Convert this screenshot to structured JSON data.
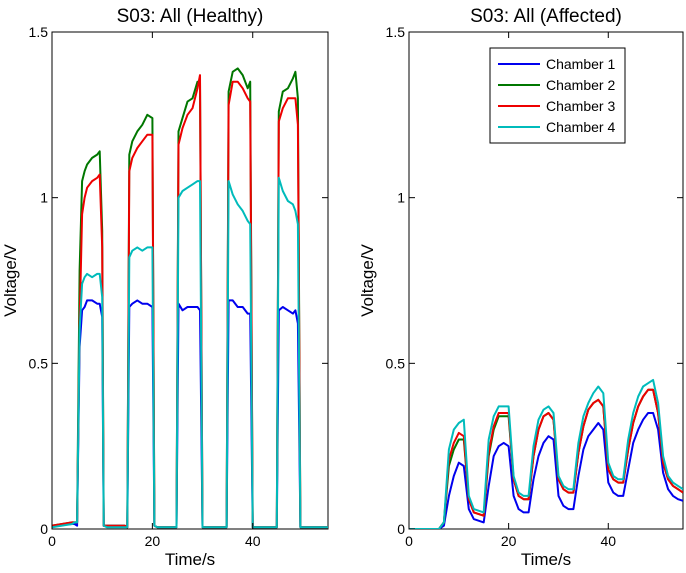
{
  "chart_data": [
    {
      "type": "line",
      "title": "S03: All (Healthy)",
      "xlabel": "Time/s",
      "ylabel": "Voltage/V",
      "xlim": [
        0,
        55
      ],
      "ylim": [
        0,
        1.5
      ],
      "xticks": [
        0,
        20,
        40
      ],
      "yticks": [
        0,
        0.5,
        1,
        1.5
      ],
      "ytick_labels": [
        "0",
        "0.5",
        "1",
        "1.5"
      ],
      "grid": false,
      "series": [
        {
          "name": "Chamber 1",
          "color": "#0000ee",
          "x": [
            0,
            4,
            4.5,
            5,
            5.5,
            6,
            6.5,
            7,
            8,
            9,
            9.5,
            10,
            10.3,
            11,
            14.5,
            15,
            15.4,
            16,
            17,
            18,
            19,
            20,
            20.4,
            21,
            24.5,
            24.8,
            25.2,
            26,
            27,
            28,
            29,
            29.5,
            30,
            34.5,
            34.8,
            35.2,
            36,
            37,
            38,
            39,
            39.5,
            40,
            44.5,
            44.8,
            45.2,
            46,
            47,
            48,
            48.5,
            49,
            49.5,
            55
          ],
          "y": [
            0.01,
            0.015,
            0.015,
            0.01,
            0.55,
            0.66,
            0.67,
            0.69,
            0.69,
            0.68,
            0.68,
            0.64,
            0.01,
            0.01,
            0.01,
            0.005,
            0.67,
            0.68,
            0.69,
            0.68,
            0.68,
            0.67,
            0.01,
            0.005,
            0.005,
            0.005,
            0.68,
            0.66,
            0.67,
            0.67,
            0.67,
            0.66,
            0.005,
            0.005,
            0.005,
            0.69,
            0.69,
            0.67,
            0.67,
            0.65,
            0.65,
            0.005,
            0.005,
            0.005,
            0.66,
            0.67,
            0.66,
            0.65,
            0.66,
            0.62,
            0.005,
            0.005
          ]
        },
        {
          "name": "Chamber 2",
          "color": "#007700",
          "x": [
            0,
            4,
            4.5,
            5,
            5.5,
            6,
            6.5,
            7,
            8,
            9,
            9.5,
            10,
            10.3,
            11,
            14.5,
            15,
            15.4,
            16,
            17,
            18,
            19,
            20,
            20.4,
            21,
            24.5,
            24.8,
            25.2,
            26,
            27,
            28,
            29,
            29.5,
            30,
            34.5,
            34.8,
            35.2,
            36,
            37,
            38,
            39,
            39.5,
            40,
            44.5,
            44.8,
            45.2,
            46,
            47,
            48,
            48.5,
            49,
            49.5,
            55
          ],
          "y": [
            0.01,
            0.02,
            0.02,
            0.02,
            0.78,
            1.05,
            1.08,
            1.1,
            1.12,
            1.13,
            1.14,
            0.9,
            0.01,
            0.01,
            0.01,
            0.005,
            1.13,
            1.17,
            1.2,
            1.22,
            1.25,
            1.24,
            0.01,
            0.005,
            0.005,
            0.005,
            1.2,
            1.24,
            1.29,
            1.3,
            1.35,
            1.35,
            0.005,
            0.005,
            0.005,
            1.32,
            1.38,
            1.39,
            1.37,
            1.33,
            1.35,
            0.005,
            0.005,
            0.005,
            1.26,
            1.32,
            1.33,
            1.36,
            1.38,
            1.3,
            0.005,
            0.005
          ]
        },
        {
          "name": "Chamber 3",
          "color": "#ee0000",
          "x": [
            0,
            4,
            4.5,
            5,
            5.5,
            6,
            6.5,
            7,
            8,
            9,
            9.5,
            10,
            10.3,
            11,
            14.5,
            15,
            15.4,
            16,
            17,
            18,
            19,
            20,
            20.4,
            21,
            24.5,
            24.8,
            25.2,
            26,
            27,
            28,
            29,
            29.5,
            30,
            34.5,
            34.8,
            35.2,
            36,
            37,
            38,
            39,
            39.5,
            40,
            44.5,
            44.8,
            45.2,
            46,
            47,
            48,
            48.5,
            49,
            49.5,
            55
          ],
          "y": [
            0.01,
            0.02,
            0.02,
            0.02,
            0.62,
            0.95,
            1.0,
            1.03,
            1.05,
            1.06,
            1.07,
            0.85,
            0.01,
            0.01,
            0.01,
            0.005,
            1.08,
            1.12,
            1.15,
            1.17,
            1.19,
            1.19,
            0.01,
            0.005,
            0.005,
            0.005,
            1.16,
            1.21,
            1.25,
            1.27,
            1.33,
            1.37,
            0.005,
            0.005,
            0.005,
            1.28,
            1.35,
            1.35,
            1.33,
            1.3,
            1.29,
            0.005,
            0.005,
            0.005,
            1.23,
            1.27,
            1.3,
            1.3,
            1.3,
            1.22,
            0.005,
            0.005
          ]
        },
        {
          "name": "Chamber 4",
          "color": "#00bbbb",
          "x": [
            0,
            4,
            4.5,
            5,
            5.5,
            6,
            6.5,
            7,
            8,
            9,
            9.5,
            10,
            10.3,
            11,
            14.5,
            15,
            15.4,
            16,
            17,
            18,
            19,
            20,
            20.4,
            21,
            24.5,
            24.8,
            25.2,
            26,
            27,
            28,
            29,
            29.5,
            30,
            34.5,
            34.8,
            35.2,
            36,
            37,
            38,
            39,
            39.5,
            40,
            44.5,
            44.8,
            45.2,
            46,
            47,
            48,
            48.5,
            49,
            49.5,
            55
          ],
          "y": [
            0.005,
            0.015,
            0.02,
            0.02,
            0.6,
            0.74,
            0.76,
            0.77,
            0.76,
            0.77,
            0.77,
            0.7,
            0.01,
            0.005,
            0.005,
            0.005,
            0.82,
            0.84,
            0.85,
            0.84,
            0.85,
            0.85,
            0.01,
            0.005,
            0.005,
            0.005,
            1.0,
            1.02,
            1.03,
            1.04,
            1.05,
            1.05,
            0.005,
            0.005,
            0.005,
            1.05,
            1.01,
            0.98,
            0.96,
            0.93,
            0.92,
            0.005,
            0.005,
            0.005,
            1.06,
            1.02,
            0.99,
            0.98,
            0.96,
            0.92,
            0.005,
            0.005
          ]
        }
      ]
    },
    {
      "type": "line",
      "title": "S03: All (Affected)",
      "xlabel": "Time/s",
      "ylabel": "Voltage/V",
      "xlim": [
        0,
        55
      ],
      "ylim": [
        0,
        1.5
      ],
      "xticks": [
        0,
        20,
        40
      ],
      "yticks": [
        0,
        0.5,
        1,
        1.5
      ],
      "ytick_labels": [
        "0",
        "0.5",
        "1",
        "1.5"
      ],
      "grid": false,
      "legend": "top-right",
      "series": [
        {
          "name": "Chamber 1",
          "color": "#0000ee",
          "x": [
            0,
            6,
            7,
            8,
            9,
            10,
            11,
            12,
            13,
            15,
            16,
            17,
            18,
            19,
            20,
            21,
            22,
            23,
            24,
            25,
            26,
            27,
            28,
            29,
            30,
            31,
            32,
            33,
            34,
            35,
            36,
            37,
            38,
            39,
            40,
            41,
            42,
            43,
            44,
            45,
            46,
            47,
            48,
            49,
            50,
            51,
            52,
            53,
            54,
            55
          ],
          "y": [
            0,
            0,
            0.01,
            0.1,
            0.16,
            0.2,
            0.19,
            0.06,
            0.03,
            0.02,
            0.13,
            0.22,
            0.25,
            0.26,
            0.25,
            0.1,
            0.06,
            0.05,
            0.05,
            0.15,
            0.22,
            0.26,
            0.28,
            0.27,
            0.1,
            0.07,
            0.06,
            0.06,
            0.16,
            0.24,
            0.28,
            0.3,
            0.32,
            0.3,
            0.14,
            0.11,
            0.1,
            0.1,
            0.18,
            0.26,
            0.3,
            0.33,
            0.35,
            0.35,
            0.3,
            0.17,
            0.12,
            0.1,
            0.09,
            0.085
          ]
        },
        {
          "name": "Chamber 2",
          "color": "#007700",
          "x": [
            0,
            6,
            7,
            8,
            9,
            10,
            11,
            12,
            13,
            15,
            16,
            17,
            18,
            19,
            20,
            21,
            22,
            23,
            24,
            25,
            26,
            27,
            28,
            29,
            30,
            31,
            32,
            33,
            34,
            35,
            36,
            37,
            38,
            39,
            40,
            41,
            42,
            43,
            44,
            45,
            46,
            47,
            48,
            49,
            50,
            51,
            52,
            53,
            54,
            55
          ],
          "y": [
            0,
            0,
            0.02,
            0.19,
            0.24,
            0.27,
            0.27,
            0.09,
            0.05,
            0.04,
            0.22,
            0.3,
            0.34,
            0.34,
            0.34,
            0.15,
            0.1,
            0.09,
            0.09,
            0.22,
            0.3,
            0.34,
            0.35,
            0.33,
            0.15,
            0.12,
            0.11,
            0.11,
            0.23,
            0.31,
            0.36,
            0.38,
            0.39,
            0.37,
            0.18,
            0.15,
            0.14,
            0.14,
            0.24,
            0.32,
            0.37,
            0.4,
            0.42,
            0.42,
            0.35,
            0.2,
            0.15,
            0.13,
            0.12,
            0.11
          ]
        },
        {
          "name": "Chamber 3",
          "color": "#ee0000",
          "x": [
            0,
            6,
            7,
            8,
            9,
            10,
            11,
            12,
            13,
            15,
            16,
            17,
            18,
            19,
            20,
            21,
            22,
            23,
            24,
            25,
            26,
            27,
            28,
            29,
            30,
            31,
            32,
            33,
            34,
            35,
            36,
            37,
            38,
            39,
            40,
            41,
            42,
            43,
            44,
            45,
            46,
            47,
            48,
            49,
            50,
            51,
            52,
            53,
            54,
            55
          ],
          "y": [
            0,
            0,
            0.02,
            0.21,
            0.26,
            0.29,
            0.28,
            0.09,
            0.05,
            0.04,
            0.23,
            0.31,
            0.35,
            0.35,
            0.35,
            0.15,
            0.1,
            0.09,
            0.09,
            0.22,
            0.3,
            0.34,
            0.35,
            0.33,
            0.15,
            0.12,
            0.11,
            0.11,
            0.23,
            0.31,
            0.36,
            0.38,
            0.39,
            0.37,
            0.18,
            0.15,
            0.14,
            0.14,
            0.24,
            0.32,
            0.37,
            0.4,
            0.42,
            0.42,
            0.35,
            0.2,
            0.15,
            0.13,
            0.12,
            0.11
          ]
        },
        {
          "name": "Chamber 4",
          "color": "#00bbbb",
          "x": [
            0,
            6,
            7,
            8,
            9,
            10,
            11,
            12,
            13,
            15,
            16,
            17,
            18,
            19,
            20,
            21,
            22,
            23,
            24,
            25,
            26,
            27,
            28,
            29,
            30,
            31,
            32,
            33,
            34,
            35,
            36,
            37,
            38,
            39,
            40,
            41,
            42,
            43,
            44,
            45,
            46,
            47,
            48,
            49,
            50,
            51,
            52,
            53,
            54,
            55
          ],
          "y": [
            0,
            0,
            0.02,
            0.24,
            0.3,
            0.32,
            0.33,
            0.1,
            0.06,
            0.05,
            0.27,
            0.34,
            0.37,
            0.37,
            0.37,
            0.16,
            0.11,
            0.1,
            0.1,
            0.25,
            0.33,
            0.36,
            0.37,
            0.35,
            0.16,
            0.13,
            0.12,
            0.12,
            0.26,
            0.34,
            0.38,
            0.41,
            0.43,
            0.41,
            0.2,
            0.16,
            0.15,
            0.15,
            0.27,
            0.35,
            0.4,
            0.43,
            0.44,
            0.45,
            0.38,
            0.22,
            0.16,
            0.14,
            0.13,
            0.12
          ]
        }
      ]
    }
  ]
}
